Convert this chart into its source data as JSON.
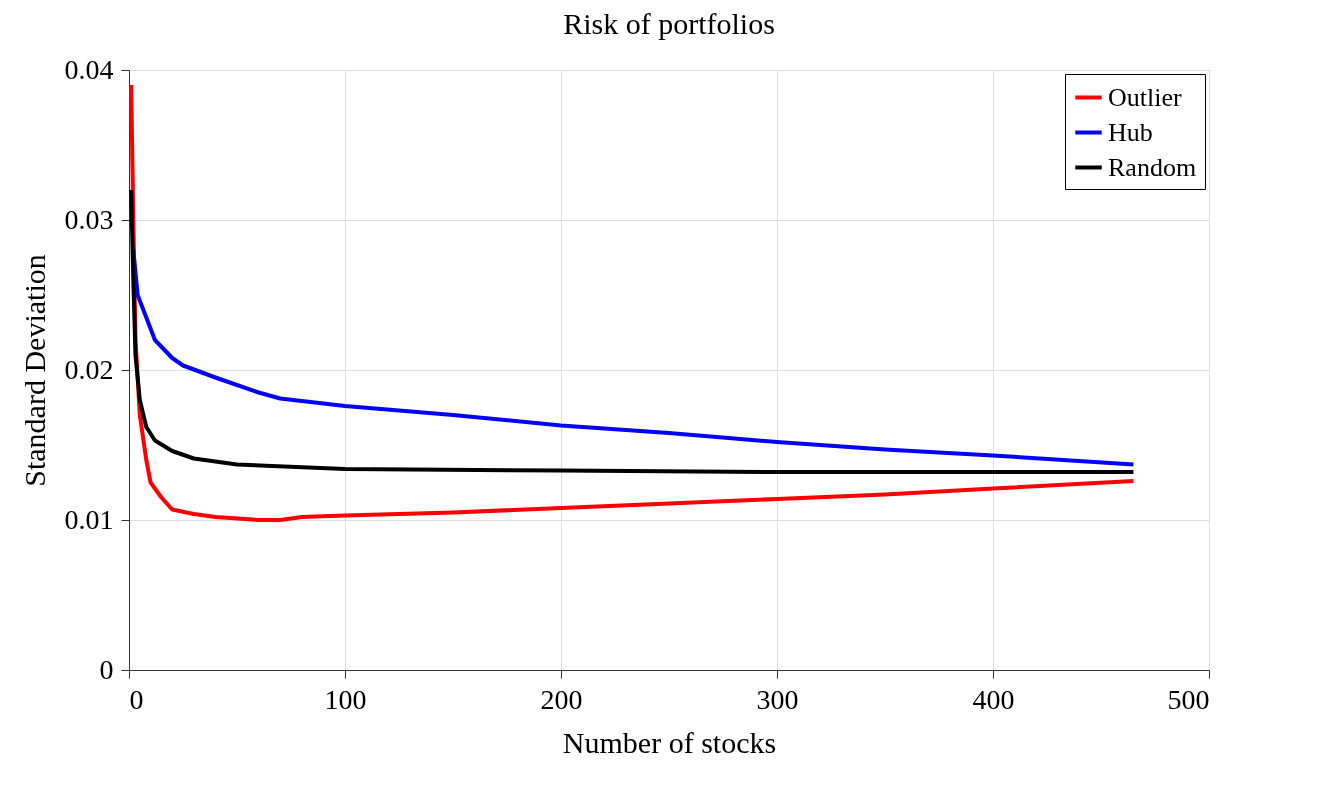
{
  "chart_data": {
    "type": "line",
    "title": "Risk of portfolios",
    "xlabel": "Number of stocks",
    "ylabel": "Standard Deviation",
    "xlim": [
      0,
      500
    ],
    "xticks": [
      0,
      100,
      200,
      300,
      400,
      500
    ],
    "ylim": [
      0,
      0.04
    ],
    "yticks": [
      0,
      0.01,
      0.02,
      0.03,
      0.04
    ],
    "grid": true,
    "legend": "top right",
    "line_style": "solid",
    "series": [
      {
        "name": "Outlier",
        "color": "#ff0000",
        "x": [
          1,
          2,
          3,
          5,
          8,
          10,
          15,
          20,
          30,
          40,
          60,
          70,
          80,
          100,
          150,
          200,
          250,
          300,
          350,
          400,
          465
        ],
        "values": [
          0.039,
          0.03,
          0.022,
          0.017,
          0.014,
          0.0125,
          0.0115,
          0.0107,
          0.0104,
          0.0102,
          0.01,
          0.01,
          0.0102,
          0.0103,
          0.0105,
          0.0108,
          0.0111,
          0.0114,
          0.0117,
          0.0121,
          0.0126
        ]
      },
      {
        "name": "Hub",
        "color": "#0000ff",
        "x": [
          2,
          4,
          8,
          12,
          20,
          25,
          40,
          60,
          70,
          100,
          150,
          200,
          250,
          300,
          350,
          400,
          465
        ],
        "values": [
          0.028,
          0.025,
          0.0235,
          0.022,
          0.0208,
          0.0203,
          0.0195,
          0.0185,
          0.0181,
          0.0176,
          0.017,
          0.0163,
          0.0158,
          0.0152,
          0.0147,
          0.0143,
          0.0137
        ]
      },
      {
        "name": "Random",
        "color": "#000000",
        "x": [
          1,
          2,
          3,
          5,
          8,
          12,
          20,
          30,
          50,
          100,
          200,
          300,
          465
        ],
        "values": [
          0.032,
          0.026,
          0.021,
          0.018,
          0.0162,
          0.0153,
          0.0146,
          0.0141,
          0.0137,
          0.0134,
          0.0133,
          0.0132,
          0.0132
        ]
      }
    ]
  }
}
